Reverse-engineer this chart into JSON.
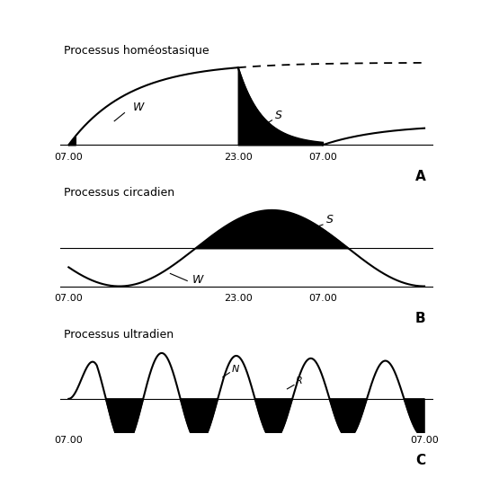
{
  "title_A": "Processus homéostasique",
  "title_B": "Processus circadien",
  "title_C": "Processus ultradien",
  "label_A": "A",
  "label_B": "B",
  "label_C": "C",
  "xticks_AB": [
    "07.00",
    "23.00",
    "07.00"
  ],
  "xtick_C_left": "07.00",
  "xtick_C_right": "07.00",
  "bg_color": "#ffffff",
  "line_color": "#000000",
  "fill_color": "#000000"
}
